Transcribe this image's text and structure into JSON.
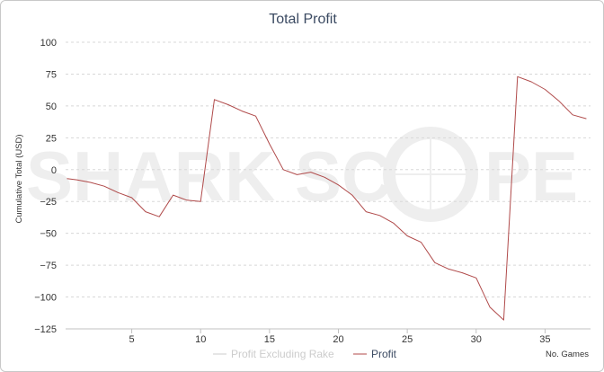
{
  "chart_data": {
    "type": "line",
    "title": "Total Profit",
    "ylabel": "Cumulative Total (USD)",
    "xlabel": "No. Games",
    "xlim": [
      0.2,
      38.3
    ],
    "ylim": [
      -125,
      100
    ],
    "y_ticks": [
      100,
      75,
      50,
      25,
      0,
      -25,
      -50,
      -75,
      -100,
      -125
    ],
    "x_ticks": [
      5,
      10,
      15,
      20,
      25,
      30,
      35
    ],
    "grid": "horizontal-dashed",
    "legend_position": "bottom",
    "watermark": "SHARKSCOPE",
    "series": [
      {
        "name": "Profit Excluding Rake",
        "color": "#cccccc",
        "x": [],
        "y": []
      },
      {
        "name": "Profit",
        "color": "#b04a4a",
        "x": [
          0.3,
          1,
          2,
          3,
          4,
          5,
          6,
          7,
          8,
          9,
          10,
          11,
          12,
          13,
          14,
          15,
          16,
          17,
          18,
          19,
          20,
          21,
          22,
          23,
          24,
          25,
          26,
          27,
          28,
          29,
          30,
          31,
          32,
          33,
          34,
          35,
          36,
          37,
          38
        ],
        "y": [
          -7,
          -8,
          -10,
          -13,
          -18,
          -22,
          -33,
          -37,
          -20,
          -24,
          -25,
          55,
          51,
          46,
          42,
          20,
          0,
          -4,
          -2,
          -6,
          -12,
          -20,
          -33,
          -36,
          -42,
          -52,
          -57,
          -73,
          -78,
          -81,
          -85,
          -108,
          -118,
          73,
          69,
          63,
          54,
          43,
          40
        ]
      }
    ]
  }
}
